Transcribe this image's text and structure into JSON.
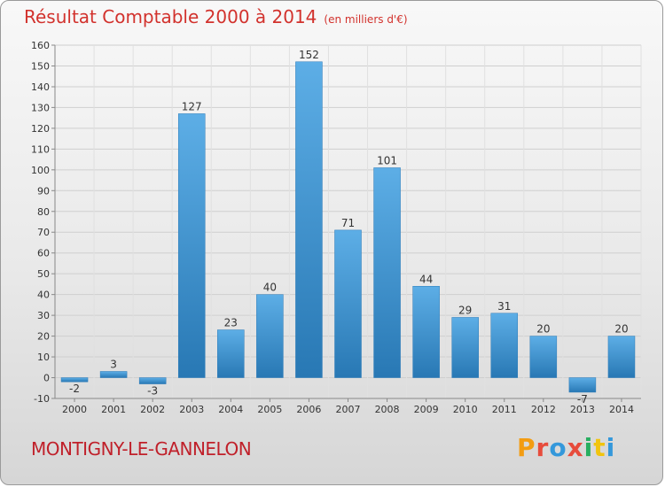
{
  "title": "Résultat Comptable 2000 à 2014",
  "subtitle": "(en milliers d'€)",
  "town": "MONTIGNY-LE-GANNELON",
  "logo": {
    "text": "Proxiti",
    "colors": [
      "#f39c12",
      "#e74c3c",
      "#3498db",
      "#e74c3c",
      "#27ae60",
      "#f1c40f",
      "#3498db"
    ]
  },
  "colors": {
    "bar_top": "#5daee6",
    "bar_bottom": "#2878b4",
    "title": "#d2322d"
  },
  "chart_data": {
    "type": "bar",
    "title": "Résultat Comptable 2000 à 2014",
    "xlabel": "",
    "ylabel": "",
    "categories": [
      "2000",
      "2001",
      "2002",
      "2003",
      "2004",
      "2005",
      "2006",
      "2007",
      "2008",
      "2009",
      "2010",
      "2011",
      "2012",
      "2013",
      "2014"
    ],
    "values": [
      -2,
      3,
      -3,
      127,
      23,
      40,
      152,
      71,
      101,
      44,
      29,
      31,
      20,
      -7,
      20
    ],
    "ylim": [
      -10,
      160
    ],
    "yticks": [
      -10,
      0,
      10,
      20,
      30,
      40,
      50,
      60,
      70,
      80,
      90,
      100,
      110,
      120,
      130,
      140,
      150,
      160
    ],
    "grid": true
  }
}
